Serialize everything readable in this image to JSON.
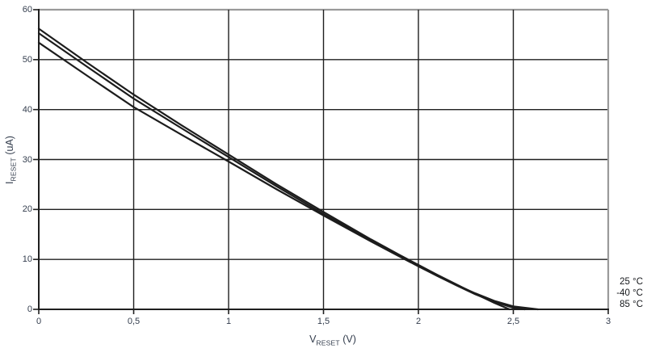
{
  "figure": {
    "background": "#ffffff",
    "text_color": "#333d4d",
    "grid_color": "#1f1f1f",
    "frame_color": "#9a9a9a",
    "curve_color": "#1c1c1c"
  },
  "axes": {
    "x": {
      "title_symbol": "V",
      "title_subscript": "RESET",
      "title_unit": " (V)",
      "min": 0,
      "max": 3,
      "tick_values": [
        0,
        0.5,
        1,
        1.5,
        2,
        2.5,
        3
      ],
      "tick_labels": [
        "0",
        "0,5",
        "1",
        "1,5",
        "2",
        "2,5",
        "3"
      ]
    },
    "y": {
      "title_symbol": "I",
      "title_subscript": "RESET",
      "title_unit": " (uA)",
      "min": 0,
      "max": 60,
      "tick_values": [
        0,
        10,
        20,
        30,
        40,
        50,
        60
      ],
      "tick_labels": [
        "0",
        "10",
        "20",
        "30",
        "40",
        "50",
        "60"
      ]
    }
  },
  "chart_data": {
    "type": "line",
    "title": "",
    "xlabel": "VRESET (V)",
    "ylabel": "IRESET (uA)",
    "xlim": [
      0,
      3
    ],
    "ylim": [
      0,
      60
    ],
    "grid": true,
    "legend_position": "outside-right-bottom",
    "legend": [
      "25 °C",
      "-40 °C",
      "85 °C"
    ],
    "series": [
      {
        "name": "25 °C",
        "x": [
          0,
          0.25,
          0.5,
          0.75,
          1.0,
          1.25,
          1.5,
          1.75,
          1.9,
          2.0,
          2.1,
          2.2,
          2.3,
          2.4,
          2.48
        ],
        "y": [
          56.2,
          49.5,
          43.0,
          36.9,
          31.0,
          25.1,
          19.5,
          14.0,
          10.9,
          8.9,
          6.9,
          5.0,
          3.1,
          1.3,
          0
        ]
      },
      {
        "name": "-40 °C",
        "x": [
          0,
          0.25,
          0.5,
          0.75,
          1.0,
          1.25,
          1.5,
          1.75,
          1.9,
          2.0,
          2.1,
          2.2,
          2.3,
          2.4,
          2.5,
          2.56
        ],
        "y": [
          55.3,
          48.7,
          42.2,
          36.3,
          30.5,
          24.7,
          19.1,
          13.8,
          10.7,
          8.7,
          6.7,
          4.8,
          3.0,
          1.5,
          0.3,
          0
        ]
      },
      {
        "name": "85 °C",
        "x": [
          0,
          0.25,
          0.5,
          0.75,
          1.0,
          1.25,
          1.5,
          1.75,
          1.9,
          2.0,
          2.1,
          2.2,
          2.3,
          2.4,
          2.5,
          2.63
        ],
        "y": [
          53.4,
          46.9,
          40.5,
          35.0,
          29.6,
          24.1,
          18.8,
          13.6,
          10.6,
          8.6,
          6.7,
          4.9,
          3.2,
          1.7,
          0.6,
          0
        ]
      }
    ]
  }
}
